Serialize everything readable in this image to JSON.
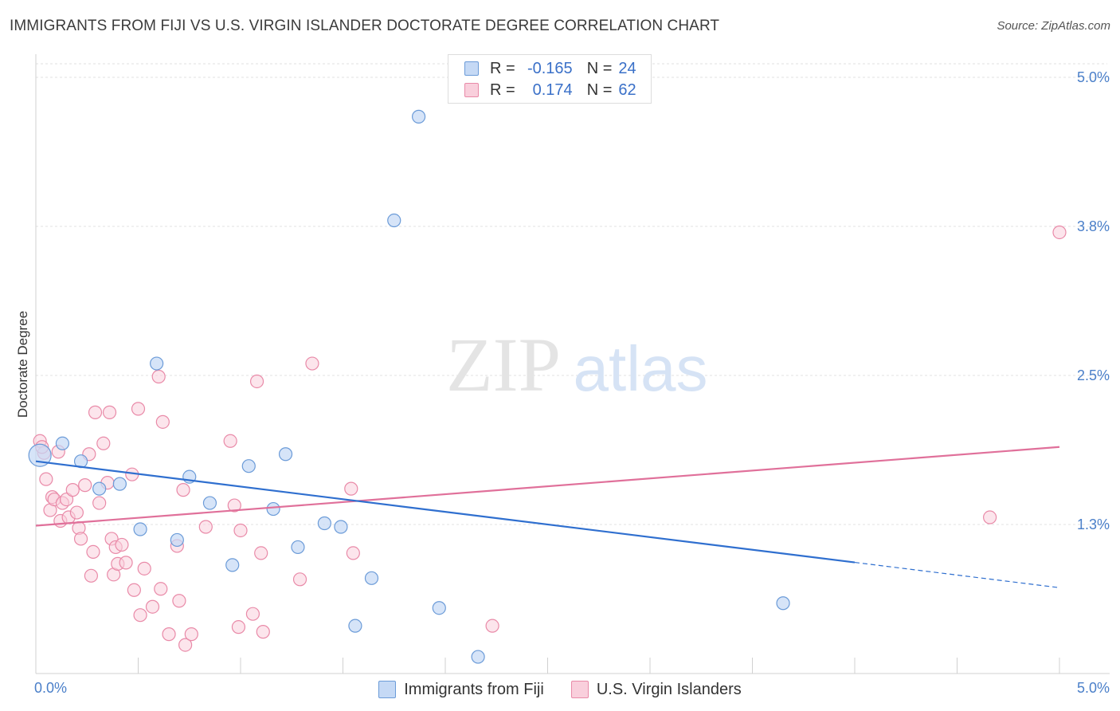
{
  "title": "IMMIGRANTS FROM FIJI VS U.S. VIRGIN ISLANDER DOCTORATE DEGREE CORRELATION CHART",
  "source": "Source: ZipAtlas.com",
  "watermark": {
    "zip": "ZIP",
    "atlas": "atlas"
  },
  "legend_top": {
    "rows": [
      {
        "r_label": "R =",
        "r_value": "-0.165",
        "n_label": "N =",
        "n_value": "24"
      },
      {
        "r_label": "R =",
        "r_value": "0.174",
        "n_label": "N =",
        "n_value": "62"
      }
    ]
  },
  "colors": {
    "fiji_fill": "#c5d9f5",
    "fiji_stroke": "#6b9bd8",
    "fiji_line": "#2f6fcf",
    "vi_fill": "#f9cfdc",
    "vi_stroke": "#e98aa8",
    "vi_line": "#e0709a",
    "grid": "#e2e2e2",
    "tick_label": "#4a7fc9"
  },
  "chart_data": {
    "type": "scatter",
    "title": "IMMIGRANTS FROM FIJI VS U.S. VIRGIN ISLANDER DOCTORATE DEGREE CORRELATION CHART",
    "xlabel": "",
    "ylabel": "Doctorate Degree",
    "xlim": [
      0,
      5.0
    ],
    "ylim": [
      0,
      5.0
    ],
    "x_tick_labels": [
      {
        "value": 0,
        "label": "0.0%"
      },
      {
        "value": 5.0,
        "label": "5.0%"
      }
    ],
    "y_ticks": [
      {
        "value": 1.25,
        "label": "1.3%"
      },
      {
        "value": 2.5,
        "label": "2.5%"
      },
      {
        "value": 3.75,
        "label": "3.8%"
      },
      {
        "value": 5.0,
        "label": "5.0%"
      }
    ],
    "grid": true,
    "legend_position": "top-center",
    "series": [
      {
        "name": "Immigrants from Fiji",
        "r": -0.165,
        "n": 24,
        "trend": {
          "x0": 0.0,
          "y0": 1.78,
          "x1": 5.0,
          "y1": 0.72,
          "solid_until": 4.0
        },
        "points": [
          {
            "x": 0.02,
            "y": 1.83,
            "big": true
          },
          {
            "x": 0.13,
            "y": 1.93
          },
          {
            "x": 0.22,
            "y": 1.78
          },
          {
            "x": 0.31,
            "y": 1.55
          },
          {
            "x": 0.41,
            "y": 1.59
          },
          {
            "x": 0.51,
            "y": 1.21
          },
          {
            "x": 0.59,
            "y": 2.6
          },
          {
            "x": 0.69,
            "y": 1.12
          },
          {
            "x": 0.75,
            "y": 1.65
          },
          {
            "x": 0.85,
            "y": 1.43
          },
          {
            "x": 0.96,
            "y": 0.91
          },
          {
            "x": 1.04,
            "y": 1.74
          },
          {
            "x": 1.16,
            "y": 1.38
          },
          {
            "x": 1.22,
            "y": 1.84
          },
          {
            "x": 1.28,
            "y": 1.06
          },
          {
            "x": 1.41,
            "y": 1.26
          },
          {
            "x": 1.49,
            "y": 1.23
          },
          {
            "x": 1.56,
            "y": 0.4
          },
          {
            "x": 1.64,
            "y": 0.8
          },
          {
            "x": 1.75,
            "y": 3.8
          },
          {
            "x": 1.87,
            "y": 4.67
          },
          {
            "x": 1.97,
            "y": 0.55
          },
          {
            "x": 2.16,
            "y": 0.14
          },
          {
            "x": 3.65,
            "y": 0.59
          }
        ]
      },
      {
        "name": "U.S. Virgin Islanders",
        "r": 0.174,
        "n": 62,
        "trend": {
          "x0": 0.0,
          "y0": 1.24,
          "x1": 5.0,
          "y1": 1.9,
          "solid_until": 5.0
        },
        "points": [
          {
            "x": 0.02,
            "y": 1.95
          },
          {
            "x": 0.04,
            "y": 1.85
          },
          {
            "x": 0.05,
            "y": 1.63
          },
          {
            "x": 0.07,
            "y": 1.37
          },
          {
            "x": 0.08,
            "y": 1.48
          },
          {
            "x": 0.09,
            "y": 1.46
          },
          {
            "x": 0.11,
            "y": 1.86
          },
          {
            "x": 0.12,
            "y": 1.28
          },
          {
            "x": 0.13,
            "y": 1.43
          },
          {
            "x": 0.15,
            "y": 1.46
          },
          {
            "x": 0.16,
            "y": 1.31
          },
          {
            "x": 0.18,
            "y": 1.54
          },
          {
            "x": 0.2,
            "y": 1.35
          },
          {
            "x": 0.21,
            "y": 1.22
          },
          {
            "x": 0.22,
            "y": 1.13
          },
          {
            "x": 0.24,
            "y": 1.58
          },
          {
            "x": 0.26,
            "y": 1.84
          },
          {
            "x": 0.27,
            "y": 0.82
          },
          {
            "x": 0.28,
            "y": 1.02
          },
          {
            "x": 0.29,
            "y": 2.19
          },
          {
            "x": 0.31,
            "y": 1.43
          },
          {
            "x": 0.33,
            "y": 1.93
          },
          {
            "x": 0.35,
            "y": 1.6
          },
          {
            "x": 0.36,
            "y": 2.19
          },
          {
            "x": 0.37,
            "y": 1.13
          },
          {
            "x": 0.38,
            "y": 0.83
          },
          {
            "x": 0.39,
            "y": 1.06
          },
          {
            "x": 0.4,
            "y": 0.92
          },
          {
            "x": 0.42,
            "y": 1.08
          },
          {
            "x": 0.44,
            "y": 0.93
          },
          {
            "x": 0.47,
            "y": 1.67
          },
          {
            "x": 0.48,
            "y": 0.7
          },
          {
            "x": 0.5,
            "y": 2.22
          },
          {
            "x": 0.51,
            "y": 0.49
          },
          {
            "x": 0.53,
            "y": 0.88
          },
          {
            "x": 0.57,
            "y": 0.56
          },
          {
            "x": 0.6,
            "y": 2.49
          },
          {
            "x": 0.61,
            "y": 0.71
          },
          {
            "x": 0.62,
            "y": 2.11
          },
          {
            "x": 0.65,
            "y": 0.33
          },
          {
            "x": 0.69,
            "y": 1.07
          },
          {
            "x": 0.7,
            "y": 0.61
          },
          {
            "x": 0.72,
            "y": 1.54
          },
          {
            "x": 0.73,
            "y": 0.24
          },
          {
            "x": 0.76,
            "y": 0.33
          },
          {
            "x": 0.83,
            "y": 1.23
          },
          {
            "x": 0.95,
            "y": 1.95
          },
          {
            "x": 0.97,
            "y": 1.41
          },
          {
            "x": 0.99,
            "y": 0.39
          },
          {
            "x": 1.0,
            "y": 1.2
          },
          {
            "x": 1.06,
            "y": 0.5
          },
          {
            "x": 1.08,
            "y": 2.45
          },
          {
            "x": 1.1,
            "y": 1.01
          },
          {
            "x": 1.11,
            "y": 0.35
          },
          {
            "x": 1.29,
            "y": 0.79
          },
          {
            "x": 1.35,
            "y": 2.6
          },
          {
            "x": 1.54,
            "y": 1.55
          },
          {
            "x": 1.55,
            "y": 1.01
          },
          {
            "x": 2.23,
            "y": 0.4
          },
          {
            "x": 4.66,
            "y": 1.31
          },
          {
            "x": 5.0,
            "y": 3.7
          },
          {
            "x": 0.03,
            "y": 1.9
          }
        ]
      }
    ]
  },
  "bottom_legend": [
    "Immigrants from Fiji",
    "U.S. Virgin Islanders"
  ]
}
